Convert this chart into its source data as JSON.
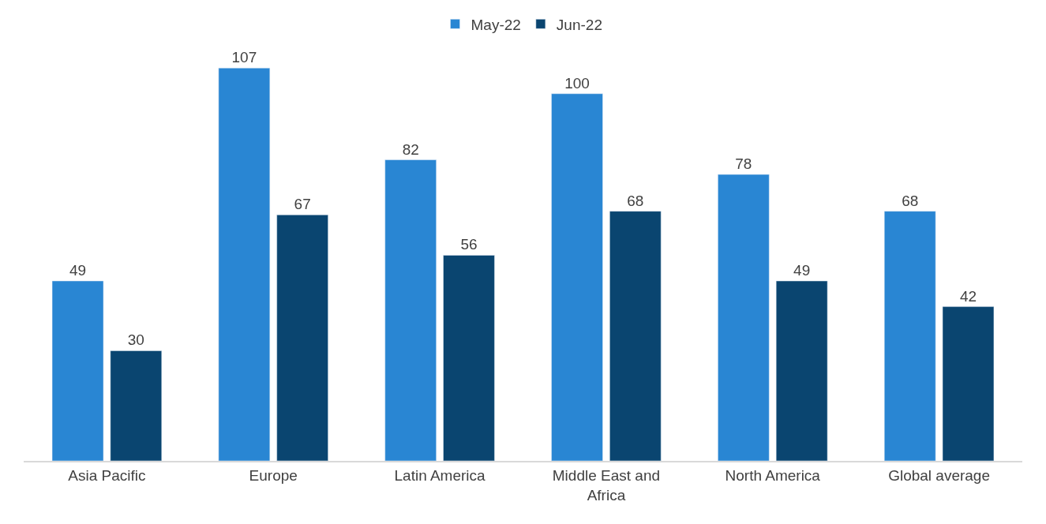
{
  "chart_data": {
    "type": "bar",
    "categories": [
      "Asia Pacific",
      "Europe",
      "Latin America",
      "Middle East and Africa",
      "North America",
      "Global average"
    ],
    "series": [
      {
        "name": "May-22",
        "color": "#2986d3",
        "values": [
          49,
          107,
          82,
          100,
          78,
          68
        ]
      },
      {
        "name": "Jun-22",
        "color": "#0a4570",
        "values": [
          30,
          67,
          56,
          68,
          49,
          42
        ]
      }
    ],
    "data_labels": true,
    "legend": "top"
  }
}
